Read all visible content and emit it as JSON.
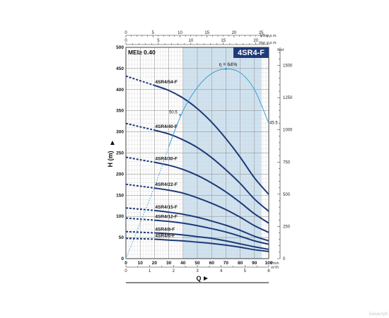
{
  "chart_data": {
    "type": "line",
    "model": "4SR4-F",
    "mei_label": "MEI≥ 0.40",
    "efficiency_label": "η = 64%",
    "x_unit_lmin": "l/min",
    "x_unit_m3h": "m³/h",
    "x_unit_usgpm": "US g.p.m.",
    "x_unit_impgpm": "Imp g.p.m.",
    "y_unit_m": "H (m)",
    "y_unit_feet": "feet",
    "x_axis_title": "Q",
    "xlim": [
      0,
      100
    ],
    "ylim": [
      0,
      500
    ],
    "x_ticks_lmin": [
      "0",
      "10",
      "20",
      "30",
      "40",
      "50",
      "60",
      "70",
      "80",
      "90",
      "100"
    ],
    "x_ticks_m3h": [
      "0",
      "1",
      "2",
      "3",
      "4",
      "5",
      "6"
    ],
    "x_ticks_usgpm": [
      "0",
      "5",
      "10",
      "15",
      "20",
      "25"
    ],
    "x_ticks_impgpm": [
      "0",
      "5",
      "10",
      "15",
      "20"
    ],
    "y_ticks_m": [
      "0",
      "50",
      "100",
      "150",
      "200",
      "250",
      "300",
      "350",
      "400",
      "450",
      "500"
    ],
    "y_ticks_feet": [
      "0",
      "250",
      "500",
      "750",
      "1000",
      "1250",
      "1500"
    ],
    "operating_range": [
      40,
      95
    ],
    "series": [
      {
        "name": "4SR4/54-F",
        "dashed": [
          [
            0,
            432
          ],
          [
            20,
            410
          ]
        ],
        "points": [
          [
            20,
            410
          ],
          [
            30,
            398
          ],
          [
            40,
            380
          ],
          [
            50,
            355
          ],
          [
            60,
            323
          ],
          [
            70,
            284
          ],
          [
            80,
            240
          ],
          [
            90,
            191
          ],
          [
            100,
            152
          ]
        ]
      },
      {
        "name": "4SR4/40-F",
        "dashed": [
          [
            0,
            320
          ],
          [
            20,
            304
          ]
        ],
        "points": [
          [
            20,
            304
          ],
          [
            30,
            295
          ],
          [
            40,
            281
          ],
          [
            50,
            263
          ],
          [
            60,
            239
          ],
          [
            70,
            210
          ],
          [
            80,
            178
          ],
          [
            90,
            141
          ],
          [
            100,
            112
          ]
        ]
      },
      {
        "name": "4SR4/30-F",
        "dashed": [
          [
            0,
            240
          ],
          [
            20,
            228
          ]
        ],
        "points": [
          [
            20,
            228
          ],
          [
            30,
            221
          ],
          [
            40,
            211
          ],
          [
            50,
            197
          ],
          [
            60,
            179
          ],
          [
            70,
            158
          ],
          [
            80,
            133
          ],
          [
            90,
            106
          ],
          [
            100,
            84
          ]
        ]
      },
      {
        "name": "4SR4/22-F",
        "dashed": [
          [
            0,
            176
          ],
          [
            20,
            167
          ]
        ],
        "points": [
          [
            20,
            167
          ],
          [
            30,
            162
          ],
          [
            40,
            155
          ],
          [
            50,
            144
          ],
          [
            60,
            131
          ],
          [
            70,
            116
          ],
          [
            80,
            98
          ],
          [
            90,
            78
          ],
          [
            100,
            62
          ]
        ]
      },
      {
        "name": "4SR4/15-F",
        "dashed": [
          [
            0,
            120
          ],
          [
            20,
            114
          ]
        ],
        "points": [
          [
            20,
            114
          ],
          [
            30,
            110
          ],
          [
            40,
            105
          ],
          [
            50,
            98
          ],
          [
            60,
            89
          ],
          [
            70,
            79
          ],
          [
            80,
            67
          ],
          [
            90,
            53
          ],
          [
            100,
            42
          ]
        ]
      },
      {
        "name": "4SR4/12-F",
        "dashed": [
          [
            0,
            96
          ],
          [
            20,
            91
          ]
        ],
        "points": [
          [
            20,
            91
          ],
          [
            30,
            88
          ],
          [
            40,
            84
          ],
          [
            50,
            78
          ],
          [
            60,
            71
          ],
          [
            70,
            63
          ],
          [
            80,
            53
          ],
          [
            90,
            42
          ],
          [
            100,
            34
          ]
        ]
      },
      {
        "name": "4SR4/8-F",
        "dashed": [
          [
            0,
            64
          ],
          [
            20,
            61
          ]
        ],
        "points": [
          [
            20,
            61
          ],
          [
            30,
            59
          ],
          [
            40,
            56
          ],
          [
            50,
            52
          ],
          [
            60,
            48
          ],
          [
            70,
            42
          ],
          [
            80,
            35
          ],
          [
            90,
            28
          ],
          [
            100,
            22
          ]
        ]
      },
      {
        "name": "4SR4/6-F",
        "dashed": [
          [
            0,
            48
          ],
          [
            20,
            46
          ]
        ],
        "points": [
          [
            20,
            46
          ],
          [
            30,
            44
          ],
          [
            40,
            42
          ],
          [
            50,
            39
          ],
          [
            60,
            36
          ],
          [
            70,
            32
          ],
          [
            80,
            27
          ],
          [
            90,
            21
          ],
          [
            100,
            17
          ]
        ]
      }
    ],
    "efficiency_curve": {
      "dashed": [
        [
          0,
          0
        ],
        [
          20,
          170
        ],
        [
          30,
          265
        ]
      ],
      "points": [
        [
          40,
          350
        ],
        [
          50,
          405
        ],
        [
          60,
          438
        ],
        [
          70,
          449
        ],
        [
          80,
          440
        ],
        [
          90,
          400
        ],
        [
          100,
          320
        ]
      ],
      "start_label": "50.5",
      "end_label": "45.5",
      "peak_x": 70
    },
    "watermark": "Бензклуб"
  }
}
